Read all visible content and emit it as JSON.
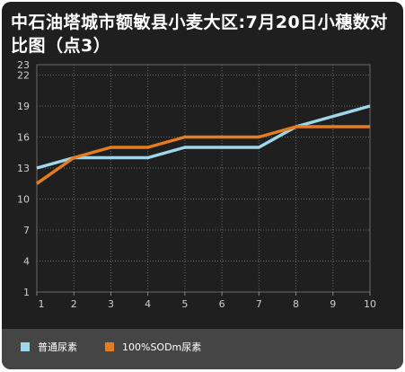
{
  "chart_data": {
    "type": "line",
    "title": "中石油塔城市额敏县小麦大区:7月20日小穗数对比图（点3）",
    "xlabel": "",
    "ylabel": "",
    "x": [
      1,
      2,
      3,
      4,
      5,
      6,
      7,
      8,
      9,
      10
    ],
    "x_ticks": [
      "1",
      "2",
      "3",
      "4",
      "5",
      "6",
      "7",
      "8",
      "9",
      "10"
    ],
    "y_ticks": [
      "1",
      "4",
      "7",
      "10",
      "13",
      "16",
      "19",
      "22",
      "23"
    ],
    "ylim": [
      1,
      23
    ],
    "grid": true,
    "legend_position": "bottom",
    "series": [
      {
        "name": "普通尿素",
        "color": "#9fd6ea",
        "values": [
          13,
          14,
          14,
          14,
          15,
          15,
          15,
          17,
          18,
          19
        ]
      },
      {
        "name": "100%SODm尿素",
        "color": "#e37d1f",
        "values": [
          11.5,
          14,
          15,
          15,
          16,
          16,
          16,
          17,
          17,
          17
        ]
      }
    ]
  }
}
